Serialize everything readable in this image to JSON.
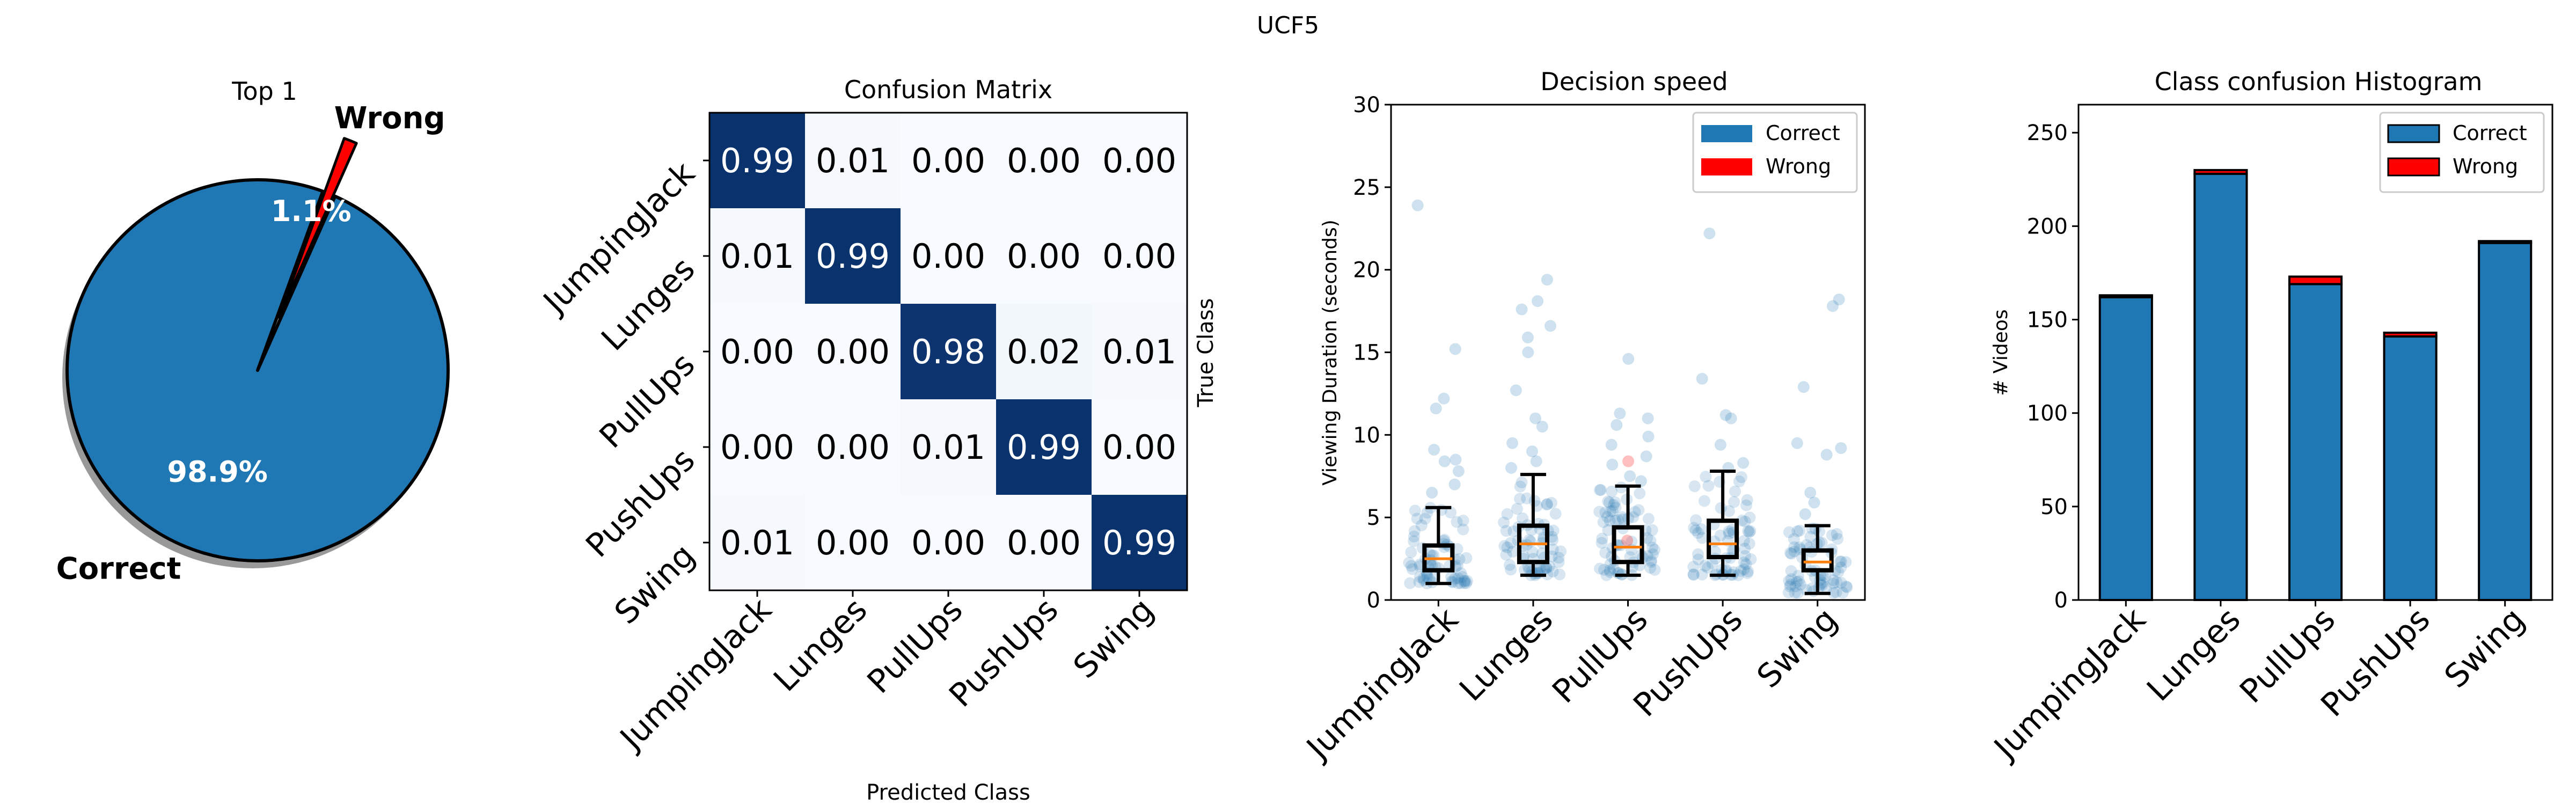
{
  "figure": {
    "suptitle": "UCF5"
  },
  "colors": {
    "correct": "#1f77b4",
    "wrong": "#ff0000",
    "median": "#ff7f0e",
    "edge": "#000000"
  },
  "classes": [
    "JumpingJack",
    "Lunges",
    "PullUps",
    "PushUps",
    "Swing"
  ],
  "chart_data": [
    {
      "type": "pie",
      "title": "Top 1",
      "labels": [
        "Correct",
        "Wrong"
      ],
      "values": [
        98.9,
        1.1
      ],
      "value_labels": [
        "98.9%",
        "1.1%"
      ],
      "explode": [
        0,
        0.3
      ],
      "shadow": true
    },
    {
      "type": "heatmap",
      "title": "Confusion Matrix",
      "xlabel": "Predicted Class",
      "ylabel": "True Class",
      "colormap": "Blues",
      "x_categories": [
        "JumpingJack",
        "Lunges",
        "PullUps",
        "PushUps",
        "Swing"
      ],
      "y_categories": [
        "JumpingJack",
        "Lunges",
        "PullUps",
        "PushUps",
        "Swing"
      ],
      "matrix": [
        [
          0.99,
          0.01,
          0.0,
          0.0,
          0.0
        ],
        [
          0.01,
          0.99,
          0.0,
          0.0,
          0.0
        ],
        [
          0.0,
          0.0,
          0.98,
          0.02,
          0.01
        ],
        [
          0.0,
          0.0,
          0.01,
          0.99,
          0.0
        ],
        [
          0.01,
          0.0,
          0.0,
          0.0,
          0.99
        ]
      ],
      "cell_labels": [
        [
          "0.99",
          "0.01",
          "0.00",
          "0.00",
          "0.00"
        ],
        [
          "0.01",
          "0.99",
          "0.00",
          "0.00",
          "0.00"
        ],
        [
          "0.00",
          "0.00",
          "0.98",
          "0.02",
          "0.01"
        ],
        [
          "0.00",
          "0.00",
          "0.01",
          "0.99",
          "0.00"
        ],
        [
          "0.01",
          "0.00",
          "0.00",
          "0.00",
          "0.99"
        ]
      ]
    },
    {
      "type": "box",
      "title": "Decision speed",
      "xlabel": "",
      "ylabel": "Viewing Duration (seconds)",
      "ylim": [
        0,
        30
      ],
      "yticks": [
        0,
        5,
        10,
        15,
        20,
        25,
        30
      ],
      "categories": [
        "JumpingJack",
        "Lunges",
        "PullUps",
        "PushUps",
        "Swing"
      ],
      "legend": {
        "position": "top-right",
        "entries": [
          "Correct",
          "Wrong"
        ]
      },
      "boxes": [
        {
          "q1": 1.8,
          "median": 2.5,
          "q3": 3.3,
          "whisker_low": 1.0,
          "whisker_high": 5.6
        },
        {
          "q1": 2.3,
          "median": 3.4,
          "q3": 4.5,
          "whisker_low": 1.5,
          "whisker_high": 7.6
        },
        {
          "q1": 2.3,
          "median": 3.2,
          "q3": 4.4,
          "whisker_low": 1.5,
          "whisker_high": 6.9
        },
        {
          "q1": 2.6,
          "median": 3.4,
          "q3": 4.8,
          "whisker_low": 1.5,
          "whisker_high": 7.8
        },
        {
          "q1": 1.8,
          "median": 2.3,
          "q3": 3.0,
          "whisker_low": 0.4,
          "whisker_high": 4.5
        }
      ],
      "outliers": [
        [
          23.9,
          15.2,
          12.2,
          11.6,
          8.5,
          8.4,
          9.1,
          7.8,
          7.0,
          6.5
        ],
        [
          19.4,
          18.1,
          17.6,
          16.6,
          15.9,
          15.0,
          12.7,
          11.0,
          10.5,
          9.5,
          9.0,
          8.4,
          8.0
        ],
        [
          14.6,
          11.3,
          11.0,
          10.6,
          9.9,
          9.4,
          8.7,
          8.2,
          7.5,
          7.2
        ],
        [
          22.2,
          13.4,
          11.2,
          11.0,
          9.4,
          8.3,
          8.0
        ],
        [
          18.2,
          17.8,
          12.9,
          9.5,
          9.2,
          8.8,
          6.5,
          5.9,
          5.2
        ]
      ],
      "wrong_points": [
        [],
        [],
        [
          8.4,
          3.6
        ],
        [],
        []
      ]
    },
    {
      "type": "bar",
      "title": "Class confusion Histogram",
      "xlabel": "",
      "ylabel": "# Videos",
      "ylim": [
        0,
        265
      ],
      "yticks": [
        0,
        50,
        100,
        150,
        200,
        250
      ],
      "stacked": true,
      "categories": [
        "JumpingJack",
        "Lunges",
        "PullUps",
        "PushUps",
        "Swing"
      ],
      "legend": {
        "position": "top-right",
        "entries": [
          "Correct",
          "Wrong"
        ]
      },
      "series": [
        {
          "name": "Correct",
          "values": [
            162,
            228,
            169,
            141,
            191
          ]
        },
        {
          "name": "Wrong",
          "values": [
            1,
            2,
            4,
            2,
            1
          ]
        }
      ]
    }
  ]
}
